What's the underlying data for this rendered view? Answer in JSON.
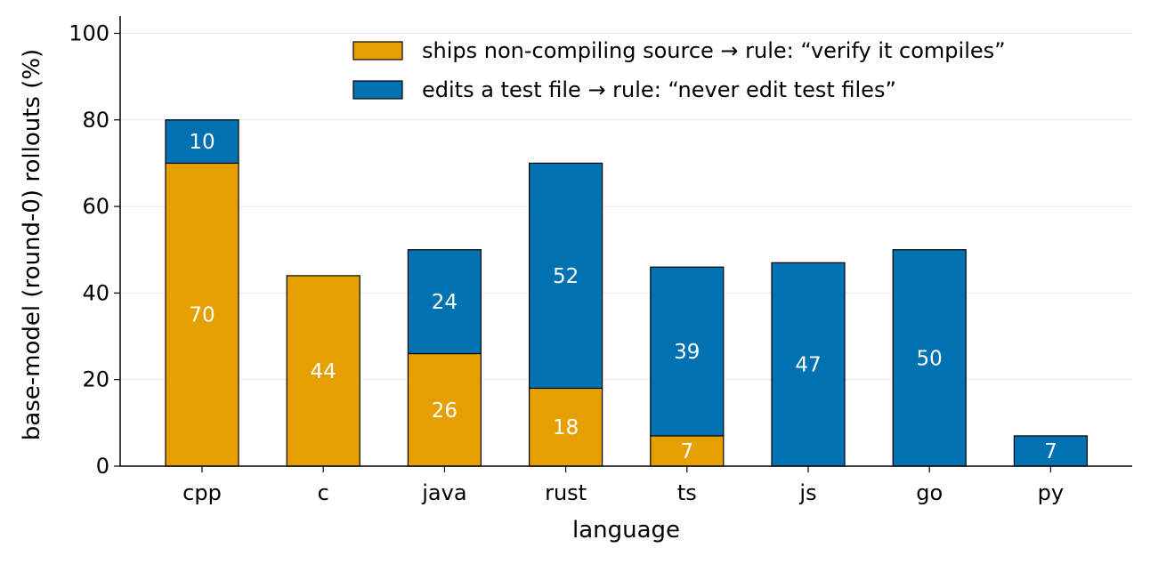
{
  "chart_data": {
    "type": "bar",
    "stacked": true,
    "categories": [
      "cpp",
      "c",
      "java",
      "rust",
      "ts",
      "js",
      "go",
      "py"
    ],
    "series": [
      {
        "name": "ships non-compiling source → rule: “verify it compiles”",
        "color": "#E69F00",
        "values": [
          70,
          44,
          26,
          18,
          7,
          0,
          0,
          0
        ],
        "labels": [
          "70",
          "44",
          "26",
          "18",
          "7",
          "",
          "",
          ""
        ]
      },
      {
        "name": "edits a test file → rule: “never edit test files”",
        "color": "#0072B2",
        "values": [
          10,
          0,
          24,
          52,
          39,
          47,
          50,
          7
        ],
        "labels": [
          "10",
          "",
          "24",
          "52",
          "39",
          "47",
          "50",
          "7"
        ]
      }
    ],
    "xlabel": "language",
    "ylabel": "base-model (round-0) rollouts (%)",
    "ylim": [
      0,
      104
    ],
    "yticks": [
      0,
      20,
      40,
      60,
      80,
      100
    ],
    "ytick_labels": [
      "0",
      "20",
      "40",
      "60",
      "80",
      "100"
    ],
    "grid": "y",
    "legend_position": "top-right"
  }
}
